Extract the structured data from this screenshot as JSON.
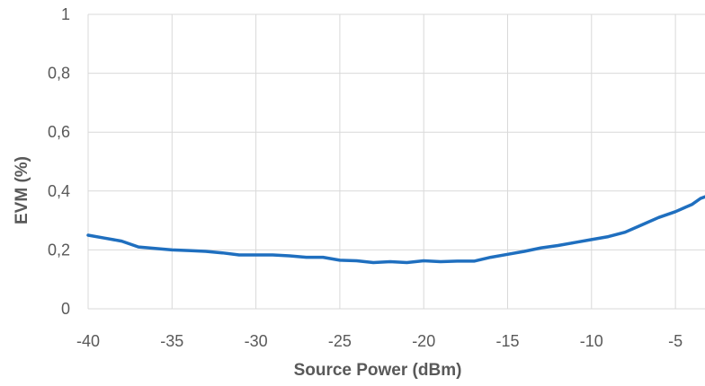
{
  "chart_data": {
    "type": "line",
    "title": "",
    "xlabel": "Source Power (dBm)",
    "ylabel": "EVM (%)",
    "xlim": [
      -40,
      0
    ],
    "ylim": [
      0,
      1
    ],
    "x_ticks": [
      "-40",
      "-35",
      "-30",
      "-25",
      "-20",
      "-15",
      "-10",
      "-5"
    ],
    "y_ticks": [
      "0",
      "0,2",
      "0,4",
      "0,6",
      "0,8",
      "1"
    ],
    "grid": true,
    "legend": "none",
    "colors": {
      "series": "#1f6fbf",
      "grid": "#d9d9d9",
      "text": "#595959"
    },
    "series": [
      {
        "x": [
          -40,
          -39,
          -38,
          -37,
          -36,
          -35,
          -34,
          -33,
          -32,
          -31,
          -30,
          -29,
          -28,
          -27,
          -26,
          -25,
          -24,
          -23,
          -22,
          -21,
          -20,
          -19,
          -18,
          -17,
          -16,
          -15,
          -14,
          -13,
          -12,
          -11,
          -10,
          -9,
          -8,
          -7,
          -6,
          -5,
          -4,
          -3.5,
          -3
        ],
        "values": [
          0.25,
          0.24,
          0.23,
          0.21,
          0.205,
          0.2,
          0.198,
          0.195,
          0.19,
          0.183,
          0.183,
          0.183,
          0.18,
          0.175,
          0.175,
          0.165,
          0.163,
          0.157,
          0.16,
          0.157,
          0.163,
          0.16,
          0.162,
          0.162,
          0.175,
          0.185,
          0.195,
          0.207,
          0.215,
          0.225,
          0.235,
          0.245,
          0.26,
          0.285,
          0.31,
          0.33,
          0.355,
          0.375,
          0.385
        ]
      }
    ]
  }
}
